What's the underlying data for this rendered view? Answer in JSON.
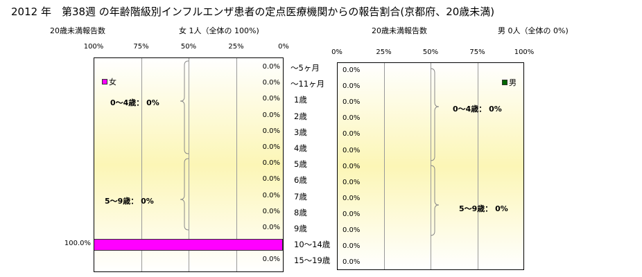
{
  "title": "2012 年　第38週 の年齢階級別インフルエンザ患者の定点医療機関からの報告割合(京都府、20歳未満)",
  "female_panel": {
    "header_left": "20歳未満報告数",
    "header_right": "女 1人（全体の 100%)",
    "ticks": [
      "100%",
      "75%",
      "50%",
      "25%",
      "0%"
    ],
    "legend": "女",
    "group_labels": [
      "0～4歳：  0%",
      "5～9歳：  0%"
    ]
  },
  "male_panel": {
    "header_left": "20歳未満報告数",
    "header_right": "男 0人（全体の 0%)",
    "ticks": [
      "0%",
      "25%",
      "50%",
      "75%",
      "100%"
    ],
    "legend": "男",
    "group_labels": [
      "0～4歳：  0%",
      "5～9歳：  0%"
    ]
  },
  "colors": {
    "female": "#ff00ff",
    "male": "#006600"
  },
  "chart_data": [
    {
      "type": "bar",
      "orientation": "horizontal",
      "direction": "right-to-left",
      "series": [
        {
          "name": "女",
          "values": [
            0,
            0,
            0,
            0,
            0,
            0,
            0,
            0,
            0,
            0,
            0,
            100,
            0
          ]
        }
      ],
      "categories": [
        "～5ヶ月",
        "～11ヶ月",
        "1歳",
        "2歳",
        "3歳",
        "4歳",
        "5歳",
        "6歳",
        "7歳",
        "8歳",
        "9歳",
        "10～14歳",
        "15～19歳"
      ],
      "value_labels": [
        "0.0%",
        "0.0%",
        "0.0%",
        "0.0%",
        "0.0%",
        "0.0%",
        "0.0%",
        "0.0%",
        "0.0%",
        "0.0%",
        "0.0%",
        "100.0%",
        "0.0%"
      ],
      "xlim": [
        0,
        100
      ],
      "grid": true,
      "legend_position": "top-left"
    },
    {
      "type": "bar",
      "orientation": "horizontal",
      "direction": "left-to-right",
      "series": [
        {
          "name": "男",
          "values": [
            0,
            0,
            0,
            0,
            0,
            0,
            0,
            0,
            0,
            0,
            0,
            0,
            0
          ]
        }
      ],
      "categories": [
        "～5ヶ月",
        "～11ヶ月",
        "1歳",
        "2歳",
        "3歳",
        "4歳",
        "5歳",
        "6歳",
        "7歳",
        "8歳",
        "9歳",
        "10～14歳",
        "15～19歳"
      ],
      "value_labels": [
        "0.0%",
        "0.0%",
        "0.0%",
        "0.0%",
        "0.0%",
        "0.0%",
        "0.0%",
        "0.0%",
        "0.0%",
        "0.0%",
        "0.0%",
        "0.0%",
        "0.0%"
      ],
      "xlim": [
        0,
        100
      ],
      "grid": true,
      "legend_position": "top-right"
    }
  ]
}
